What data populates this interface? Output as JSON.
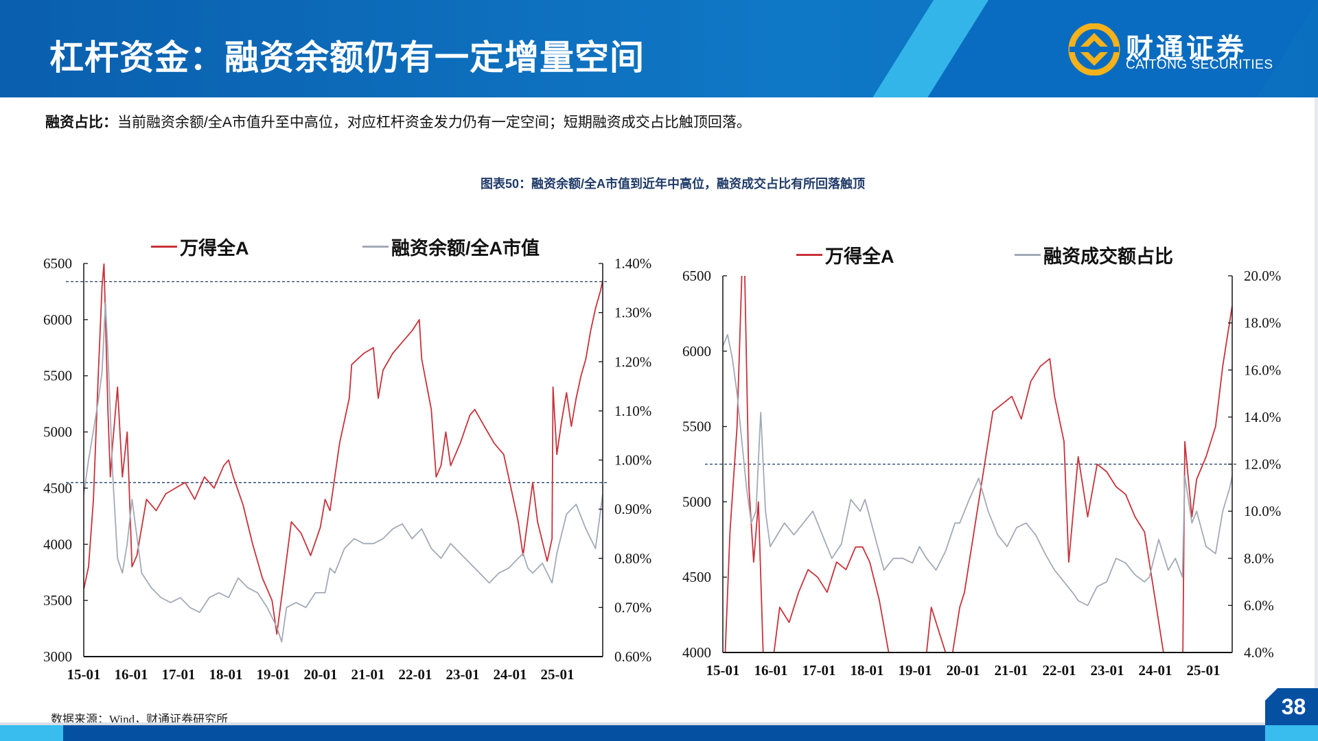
{
  "header": {
    "title": "杠杆资金：融资余额仍有一定增量空间",
    "logo_cn": "财通证券",
    "logo_en": "CAITONG SECURITIES"
  },
  "summary": {
    "label": "融资占比：",
    "text": "当前融资余额/全A市值升至中高位，对应杠杆资金发力仍有一定空间；短期融资成交占比触顶回落。"
  },
  "figure_title": "图表50：融资余额/全A市值到近年中高位，融资成交占比有所回落触顶",
  "source": "数据来源：Wind，财通证券研究所",
  "page_number": "38",
  "colors": {
    "red": "#c8313a",
    "gray": "#a2aab6",
    "ref_line": "#1f3a68",
    "brand": "#0650a2",
    "accent": "#38bdee"
  },
  "chart_data": [
    {
      "type": "line",
      "title": "",
      "legend": [
        "万得全A",
        "融资余额/全A市值"
      ],
      "legend_position": "top",
      "x_ticks": [
        "15-01",
        "16-01",
        "17-01",
        "18-01",
        "19-01",
        "20-01",
        "21-01",
        "22-01",
        "23-01",
        "24-01",
        "25-01"
      ],
      "x_range": [
        2015.0,
        2025.75
      ],
      "y_left": {
        "range": [
          3000,
          6500
        ],
        "ticks": [
          "3000",
          "3500",
          "4000",
          "4500",
          "5000",
          "5500",
          "6000",
          "6500"
        ]
      },
      "y_right": {
        "range": [
          0.6,
          1.4
        ],
        "ticks": [
          "0.60%",
          "0.70%",
          "0.80%",
          "0.90%",
          "1.00%",
          "1.10%",
          "1.20%",
          "1.30%",
          "1.40%"
        ]
      },
      "reference_lines_right_axis": [
        1.363,
        0.954
      ],
      "series": [
        {
          "name": "万得全A",
          "axis": "left",
          "x": [
            2015.0,
            2015.1,
            2015.2,
            2015.3,
            2015.38,
            2015.42,
            2015.5,
            2015.55,
            2015.6,
            2015.7,
            2015.8,
            2015.9,
            2016.0,
            2016.1,
            2016.3,
            2016.5,
            2016.7,
            2016.9,
            2017.1,
            2017.3,
            2017.5,
            2017.7,
            2017.9,
            2018.0,
            2018.1,
            2018.3,
            2018.5,
            2018.7,
            2018.9,
            2019.0,
            2019.15,
            2019.3,
            2019.5,
            2019.7,
            2019.9,
            2020.0,
            2020.1,
            2020.2,
            2020.3,
            2020.5,
            2020.55,
            2020.8,
            2021.0,
            2021.1,
            2021.2,
            2021.4,
            2021.6,
            2021.8,
            2021.95,
            2022.0,
            2022.2,
            2022.3,
            2022.4,
            2022.5,
            2022.6,
            2022.8,
            2023.0,
            2023.1,
            2023.3,
            2023.5,
            2023.7,
            2023.8,
            2023.9,
            2024.0,
            2024.1,
            2024.3,
            2024.4,
            2024.6,
            2024.7,
            2024.72,
            2024.8,
            2024.9,
            2025.0,
            2025.1,
            2025.2,
            2025.3,
            2025.4,
            2025.5,
            2025.6,
            2025.7,
            2025.75
          ],
          "y": [
            3600,
            3800,
            4400,
            5500,
            6300,
            6500,
            5200,
            4600,
            4900,
            5400,
            4600,
            5000,
            3800,
            3900,
            4400,
            4300,
            4450,
            4500,
            4550,
            4400,
            4600,
            4500,
            4700,
            4750,
            4600,
            4350,
            4000,
            3700,
            3500,
            3200,
            3700,
            4200,
            4100,
            3900,
            4150,
            4400,
            4300,
            4600,
            4900,
            5300,
            5600,
            5700,
            5750,
            5300,
            5550,
            5700,
            5800,
            5900,
            6000,
            5650,
            5200,
            4600,
            4700,
            5000,
            4700,
            4900,
            5150,
            5200,
            5050,
            4900,
            4800,
            4600,
            4400,
            4200,
            3900,
            4550,
            4200,
            3850,
            4050,
            5400,
            4800,
            5100,
            5350,
            5050,
            5300,
            5500,
            5650,
            5900,
            6100,
            6250,
            6350
          ]
        },
        {
          "name": "融资余额/全A市值",
          "axis": "right",
          "x": [
            2015.0,
            2015.1,
            2015.2,
            2015.3,
            2015.38,
            2015.45,
            2015.5,
            2015.6,
            2015.7,
            2015.8,
            2015.9,
            2016.0,
            2016.2,
            2016.4,
            2016.6,
            2016.8,
            2017.0,
            2017.2,
            2017.4,
            2017.6,
            2017.8,
            2018.0,
            2018.2,
            2018.4,
            2018.6,
            2018.8,
            2019.0,
            2019.1,
            2019.2,
            2019.4,
            2019.6,
            2019.8,
            2020.0,
            2020.1,
            2020.2,
            2020.4,
            2020.6,
            2020.8,
            2021.0,
            2021.2,
            2021.4,
            2021.6,
            2021.8,
            2022.0,
            2022.2,
            2022.4,
            2022.6,
            2022.8,
            2023.0,
            2023.2,
            2023.4,
            2023.6,
            2023.8,
            2024.0,
            2024.1,
            2024.2,
            2024.3,
            2024.5,
            2024.7,
            2024.8,
            2025.0,
            2025.2,
            2025.4,
            2025.6,
            2025.75
          ],
          "y": [
            0.93,
            1.0,
            1.06,
            1.12,
            1.18,
            1.32,
            1.22,
            0.97,
            0.8,
            0.77,
            0.83,
            0.92,
            0.77,
            0.74,
            0.72,
            0.71,
            0.72,
            0.7,
            0.69,
            0.72,
            0.73,
            0.72,
            0.76,
            0.74,
            0.73,
            0.7,
            0.66,
            0.63,
            0.7,
            0.71,
            0.7,
            0.73,
            0.73,
            0.78,
            0.77,
            0.82,
            0.84,
            0.83,
            0.83,
            0.84,
            0.86,
            0.87,
            0.84,
            0.86,
            0.82,
            0.8,
            0.83,
            0.81,
            0.79,
            0.77,
            0.75,
            0.77,
            0.78,
            0.8,
            0.81,
            0.78,
            0.77,
            0.79,
            0.75,
            0.81,
            0.89,
            0.91,
            0.86,
            0.82,
            0.93
          ]
        }
      ]
    },
    {
      "type": "line",
      "title": "",
      "legend": [
        "万得全A",
        "融资成交额占比"
      ],
      "legend_position": "top",
      "x_ticks": [
        "15-01",
        "16-01",
        "17-01",
        "18-01",
        "19-01",
        "20-01",
        "21-01",
        "22-01",
        "23-01",
        "24-01",
        "25-01"
      ],
      "x_range": [
        2015.0,
        2025.75
      ],
      "y_left": {
        "range": [
          4000,
          6500
        ],
        "ticks": [
          "4000",
          "4500",
          "5000",
          "5500",
          "6000",
          "6500"
        ]
      },
      "y_right": {
        "range": [
          4.0,
          20.0
        ],
        "ticks": [
          "4.0%",
          "6.0%",
          "8.0%",
          "10.0%",
          "12.0%",
          "14.0%",
          "16.0%",
          "18.0%",
          "20.0%"
        ]
      },
      "reference_lines_right_axis": [
        12.0
      ],
      "series": [
        {
          "name": "万得全A",
          "axis": "left",
          "x": [
            2015.0,
            2015.15,
            2015.3,
            2015.4,
            2015.45,
            2015.55,
            2015.65,
            2015.75,
            2015.85,
            2016.0,
            2016.2,
            2016.4,
            2016.6,
            2016.8,
            2017.0,
            2017.2,
            2017.4,
            2017.6,
            2017.8,
            2017.95,
            2018.1,
            2018.3,
            2018.5,
            2018.7,
            2019.0,
            2019.2,
            2019.4,
            2019.6,
            2019.8,
            2020.0,
            2020.1,
            2020.3,
            2020.5,
            2020.7,
            2020.9,
            2021.1,
            2021.3,
            2021.5,
            2021.7,
            2021.9,
            2022.0,
            2022.2,
            2022.3,
            2022.5,
            2022.7,
            2022.9,
            2023.1,
            2023.3,
            2023.5,
            2023.7,
            2023.9,
            2024.0,
            2024.15,
            2024.3,
            2024.5,
            2024.6,
            2024.7,
            2024.75,
            2024.9,
            2025.0,
            2025.2,
            2025.4,
            2025.55,
            2025.7,
            2025.75
          ],
          "y": [
            3600,
            4800,
            5500,
            6500,
            6700,
            5100,
            4600,
            5000,
            4000,
            3800,
            4300,
            4200,
            4400,
            4550,
            4500,
            4400,
            4600,
            4550,
            4700,
            4700,
            4600,
            4350,
            4000,
            3800,
            3200,
            3700,
            4300,
            4100,
            3900,
            4300,
            4400,
            4800,
            5200,
            5600,
            5650,
            5700,
            5550,
            5800,
            5900,
            5950,
            5700,
            5400,
            4600,
            5300,
            4900,
            5250,
            5200,
            5100,
            5050,
            4900,
            4800,
            4600,
            4300,
            4000,
            3750,
            3900,
            3700,
            5400,
            4900,
            5150,
            5300,
            5500,
            5900,
            6200,
            6300
          ]
        },
        {
          "name": "融资成交额占比",
          "axis": "right",
          "x": [
            2015.0,
            2015.1,
            2015.2,
            2015.3,
            2015.4,
            2015.5,
            2015.6,
            2015.7,
            2015.8,
            2015.9,
            2016.0,
            2016.15,
            2016.3,
            2016.5,
            2016.7,
            2016.9,
            2017.1,
            2017.3,
            2017.5,
            2017.7,
            2017.9,
            2018.0,
            2018.2,
            2018.4,
            2018.6,
            2018.8,
            2019.0,
            2019.15,
            2019.3,
            2019.5,
            2019.7,
            2019.9,
            2020.0,
            2020.2,
            2020.4,
            2020.6,
            2020.8,
            2021.0,
            2021.2,
            2021.4,
            2021.6,
            2021.8,
            2022.0,
            2022.2,
            2022.4,
            2022.5,
            2022.7,
            2022.9,
            2023.1,
            2023.3,
            2023.5,
            2023.7,
            2023.9,
            2024.0,
            2024.2,
            2024.4,
            2024.55,
            2024.7,
            2024.75,
            2024.9,
            2025.0,
            2025.2,
            2025.4,
            2025.55,
            2025.7,
            2025.75
          ],
          "y": [
            17,
            17.5,
            16.5,
            15,
            13,
            11,
            9.5,
            10,
            14.2,
            10,
            8.5,
            9,
            9.5,
            9,
            9.5,
            10,
            9,
            8,
            8.6,
            10.5,
            10,
            10.5,
            9,
            7.5,
            8,
            8,
            7.8,
            8.5,
            8,
            7.5,
            8.3,
            9.5,
            9.5,
            10.5,
            11.4,
            10,
            9,
            8.5,
            9.3,
            9.5,
            9,
            8.2,
            7.5,
            7,
            6.5,
            6.2,
            6,
            6.8,
            7,
            8,
            7.8,
            7.3,
            7,
            7.2,
            8.8,
            7.5,
            8,
            7.2,
            11.5,
            9.5,
            10,
            8.5,
            8.2,
            10,
            11,
            11.5
          ]
        }
      ]
    }
  ]
}
